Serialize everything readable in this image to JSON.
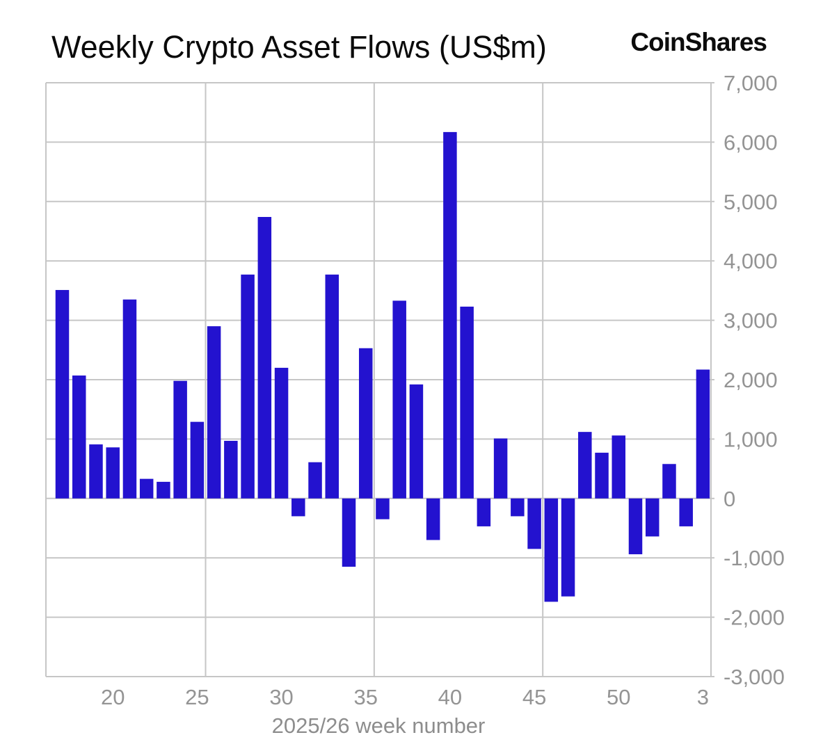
{
  "header": {
    "title": "Weekly Crypto Asset Flows (US$m)",
    "logo_text": "CoinShares"
  },
  "chart_data": {
    "type": "bar",
    "title": "Weekly Crypto Asset Flows (US$m)",
    "xlabel": "2025/26 week number",
    "ylabel": "",
    "series_name": "Weekly crypto asset flows (US$m)",
    "categories": [
      "17",
      "18",
      "19",
      "20",
      "21",
      "22",
      "23",
      "24",
      "25",
      "26",
      "27",
      "28",
      "29",
      "30",
      "31",
      "32",
      "33",
      "34",
      "35",
      "36",
      "37",
      "38",
      "39",
      "40",
      "41",
      "42",
      "43",
      "44",
      "45",
      "46",
      "47",
      "48",
      "49",
      "50",
      "51",
      "52",
      "1",
      "2",
      "3"
    ],
    "values": [
      3510,
      2070,
      910,
      860,
      3350,
      330,
      280,
      1980,
      1290,
      2900,
      970,
      3770,
      4740,
      2200,
      -300,
      610,
      3770,
      -1150,
      2530,
      -350,
      3330,
      1920,
      -700,
      6170,
      3230,
      -470,
      1010,
      -300,
      -850,
      -1740,
      -1650,
      1120,
      770,
      1060,
      -940,
      -640,
      580,
      -470,
      2170
    ],
    "ylim": [
      -3000,
      7000
    ],
    "y_tick_step": 1000,
    "y_tick_labels": [
      "7,000",
      "6,000",
      "5,000",
      "4,000",
      "3,000",
      "2,000",
      "1,000",
      "0",
      "-1,000",
      "-2,000",
      "-3,000"
    ],
    "x_tick_labels": [
      "20",
      "25",
      "30",
      "35",
      "40",
      "45",
      "50",
      "3"
    ],
    "vgrid_after_categories": [
      "25",
      "35",
      "45"
    ],
    "grid": true,
    "legend": "none",
    "colors": {
      "bar": "#2312cf",
      "grid": "#c6c6c6",
      "axis_label": "#949494",
      "title": "#0a0a0a",
      "background": "#ffffff"
    }
  }
}
